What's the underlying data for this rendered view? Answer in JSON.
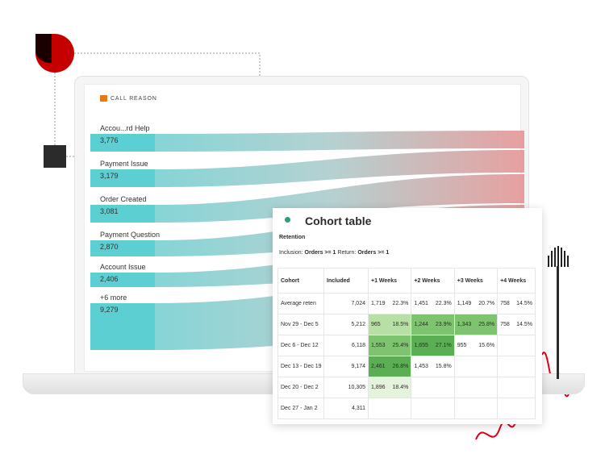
{
  "colors": {
    "teal": "#5ccfd2",
    "rose": "#e38f8f",
    "red_accent": "#c40000",
    "green_dark": "#5cae55",
    "green_mid": "#7ec36f",
    "green_light": "#b8dfa6",
    "green_pale": "#e6f3dc"
  },
  "call_reason": {
    "heading": "CALL REASON",
    "flows": [
      {
        "label": "Accou...rd Help",
        "value": "3,776"
      },
      {
        "label": "Payment Issue",
        "value": "3,179"
      },
      {
        "label": "Order Created",
        "value": "3,081"
      },
      {
        "label": "Payment Question",
        "value": "2,870"
      },
      {
        "label": "Account Issue",
        "value": "2,406"
      },
      {
        "label": "+6 more",
        "value": "9,279"
      }
    ]
  },
  "cohort": {
    "title": "Cohort table",
    "subtitle": "Retention",
    "inclusion_prefix": "Inclusion: ",
    "inclusion_metric": "Orders >= 1",
    "return_prefix": " Return: ",
    "return_metric": "Orders >= 1",
    "headers": [
      "Cohort",
      "Included",
      "+1 Weeks",
      "+2 Weeks",
      "+3 Weeks",
      "+4 Weeks"
    ],
    "rows": [
      {
        "cohort": "Average reten",
        "included": "7,024",
        "cells": [
          [
            "1,719",
            "22.3%",
            ""
          ],
          [
            "1,451",
            "22.3%",
            ""
          ],
          [
            "1,149",
            "20.7%",
            ""
          ],
          [
            "758",
            "14.5%",
            ""
          ]
        ]
      },
      {
        "cohort": "Nov 29 - Dec 5",
        "included": "5,212",
        "cells": [
          [
            "965",
            "18.5%",
            "light"
          ],
          [
            "1,244",
            "23.9%",
            "mid"
          ],
          [
            "1,343",
            "25.8%",
            "mid"
          ],
          [
            "758",
            "14.5%",
            ""
          ]
        ]
      },
      {
        "cohort": "Dec 6 - Dec 12",
        "included": "6,118",
        "cells": [
          [
            "1,553",
            "25.4%",
            "mid"
          ],
          [
            "1,655",
            "27.1%",
            "dark"
          ],
          [
            "955",
            "15.6%",
            ""
          ],
          [
            "",
            "",
            " empty"
          ]
        ]
      },
      {
        "cohort": "Dec 13 - Dec 19",
        "included": "9,174",
        "cells": [
          [
            "2,461",
            "26.8%",
            "dark"
          ],
          [
            "1,453",
            "15.8%",
            ""
          ],
          [
            "",
            "",
            "empty"
          ],
          [
            "",
            "",
            "empty"
          ]
        ]
      },
      {
        "cohort": "Dec 20 - Dec 2",
        "included": "10,305",
        "cells": [
          [
            "1,896",
            "18.4%",
            "pale"
          ],
          [
            "",
            "",
            "empty"
          ],
          [
            "",
            "",
            "empty"
          ],
          [
            "",
            "",
            "empty"
          ]
        ]
      },
      {
        "cohort": "Dec 27 - Jan 2",
        "included": "4,311",
        "cells": [
          [
            "",
            "",
            "empty"
          ],
          [
            "",
            "",
            "empty"
          ],
          [
            "",
            "",
            "empty"
          ],
          [
            "",
            "",
            "empty"
          ]
        ]
      }
    ]
  }
}
